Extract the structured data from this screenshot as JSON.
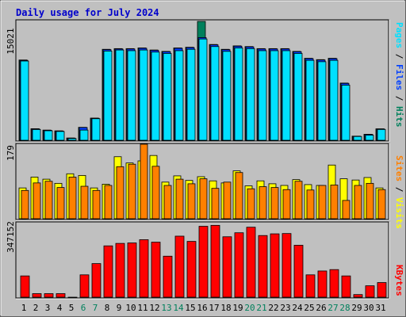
{
  "title": "Daily usage for July 2024",
  "colors": {
    "background": "#C0C0C0",
    "frame": "#808080",
    "title": "#0000CC",
    "hits": "#00805C",
    "files": "#0040FF",
    "pages": "#00E0FF",
    "visits": "#FFFF00",
    "sites": "#FF8000",
    "kbytes": "#FF0000",
    "weekend_label": "#00805C",
    "weekday_label": "#000000"
  },
  "chart_data": [
    {
      "type": "bar",
      "panel": "hits-files-pages",
      "categories": [
        "1",
        "2",
        "3",
        "4",
        "5",
        "6",
        "7",
        "8",
        "9",
        "10",
        "11",
        "12",
        "13",
        "14",
        "15",
        "16",
        "17",
        "18",
        "19",
        "20",
        "21",
        "22",
        "23",
        "24",
        "25",
        "26",
        "27",
        "28",
        "29",
        "30",
        "31"
      ],
      "y_tick_label": "15021",
      "ylim": [
        0,
        17250
      ],
      "right_axis_labels": [
        "Pages",
        "Files",
        "Hits"
      ],
      "series": [
        {
          "name": "Hits",
          "values": [
            11650,
            1680,
            1480,
            1370,
            330,
            1880,
            3220,
            13200,
            13300,
            13300,
            13400,
            13100,
            12900,
            13400,
            13500,
            17250,
            13900,
            13200,
            13700,
            13600,
            13300,
            13300,
            13300,
            12900,
            11900,
            11700,
            11900,
            8300,
            600,
            870,
            1660
          ]
        },
        {
          "name": "Files",
          "values": [
            11600,
            1650,
            1450,
            1340,
            310,
            1850,
            3200,
            13150,
            13250,
            13250,
            13350,
            13050,
            12850,
            13350,
            13450,
            14900,
            13850,
            13150,
            13650,
            13550,
            13250,
            13250,
            13250,
            12850,
            11850,
            11650,
            11850,
            8250,
            580,
            850,
            1640
          ]
        },
        {
          "name": "Pages",
          "values": [
            11500,
            1560,
            1380,
            1280,
            250,
            1480,
            3130,
            12950,
            13100,
            13000,
            13100,
            12800,
            12600,
            13000,
            13200,
            14700,
            13600,
            12900,
            13400,
            13300,
            13000,
            13000,
            13000,
            12600,
            11600,
            11400,
            11600,
            8000,
            550,
            730,
            1570
          ]
        }
      ]
    },
    {
      "type": "bar",
      "panel": "visits-sites",
      "categories": [
        "1",
        "2",
        "3",
        "4",
        "5",
        "6",
        "7",
        "8",
        "9",
        "10",
        "11",
        "12",
        "13",
        "14",
        "15",
        "16",
        "17",
        "18",
        "19",
        "20",
        "21",
        "22",
        "23",
        "24",
        "25",
        "26",
        "27",
        "28",
        "29",
        "30",
        "31"
      ],
      "y_tick_label": "179",
      "ylim": [
        0,
        179
      ],
      "right_axis_labels": [
        "Sites",
        "Visits"
      ],
      "series": [
        {
          "name": "Visits",
          "values": [
            74,
            100,
            95,
            85,
            108,
            104,
            74,
            83,
            149,
            134,
            139,
            152,
            88,
            103,
            92,
            101,
            91,
            86,
            115,
            79,
            91,
            84,
            80,
            94,
            82,
            80,
            129,
            96,
            93,
            99,
            74
          ]
        },
        {
          "name": "Sites",
          "values": [
            68,
            86,
            90,
            75,
            100,
            78,
            68,
            80,
            125,
            131,
            179,
            126,
            80,
            95,
            84,
            96,
            73,
            88,
            111,
            72,
            77,
            75,
            70,
            90,
            69,
            80,
            81,
            44,
            80,
            85,
            70
          ]
        }
      ]
    },
    {
      "type": "bar",
      "panel": "kbytes",
      "categories": [
        "1",
        "2",
        "3",
        "4",
        "5",
        "6",
        "7",
        "8",
        "9",
        "10",
        "11",
        "12",
        "13",
        "14",
        "15",
        "16",
        "17",
        "18",
        "19",
        "20",
        "21",
        "22",
        "23",
        "24",
        "25",
        "26",
        "27",
        "28",
        "29",
        "30",
        "31"
      ],
      "y_tick_label": "347152",
      "ylim": [
        0,
        473000
      ],
      "right_axis_labels": [
        "KBytes"
      ],
      "series": [
        {
          "name": "KBytes",
          "values": [
            138000,
            23000,
            23000,
            23000,
            0,
            145000,
            218000,
            333000,
            349000,
            352000,
            373000,
            357000,
            266000,
            396000,
            362000,
            460000,
            466000,
            392000,
            418000,
            454000,
            400000,
            411000,
            413000,
            337000,
            145000,
            170000,
            179000,
            138000,
            17000,
            74000,
            95000
          ]
        }
      ]
    }
  ],
  "x_labels": [
    "1",
    "2",
    "3",
    "4",
    "5",
    "6",
    "7",
    "8",
    "9",
    "10",
    "11",
    "12",
    "13",
    "14",
    "15",
    "16",
    "17",
    "18",
    "19",
    "20",
    "21",
    "22",
    "23",
    "24",
    "25",
    "26",
    "27",
    "28",
    "29",
    "30",
    "31"
  ],
  "weekend_days": [
    "6",
    "7",
    "13",
    "14",
    "20",
    "21",
    "27",
    "28"
  ]
}
